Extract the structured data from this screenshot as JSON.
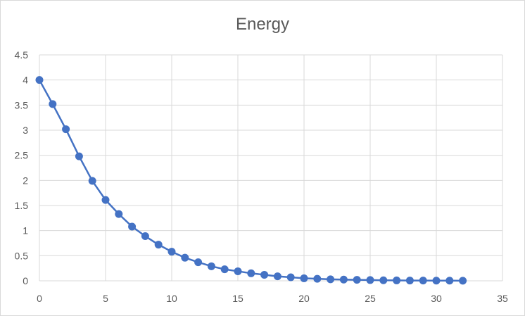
{
  "chart_data": {
    "type": "line",
    "title": "Energy",
    "xlabel": "",
    "ylabel": "",
    "xlim": [
      0,
      35
    ],
    "ylim": [
      0,
      4.5
    ],
    "x_ticks": [
      "0",
      "5",
      "10",
      "15",
      "20",
      "25",
      "30",
      "35"
    ],
    "y_ticks": [
      "0",
      "0.5",
      "1",
      "1.5",
      "2",
      "2.5",
      "3",
      "3.5",
      "4",
      "4.5"
    ],
    "grid": true,
    "legend": "none",
    "series": [
      {
        "color": "#4472c4",
        "marker": "circle",
        "x": [
          0,
          1,
          2,
          3,
          4,
          5,
          6,
          7,
          8,
          9,
          10,
          11,
          12,
          13,
          14,
          15,
          16,
          17,
          18,
          19,
          20,
          21,
          22,
          23,
          24,
          25,
          26,
          27,
          28,
          29,
          30,
          31,
          32
        ],
        "y": [
          4.0,
          3.52,
          3.02,
          2.48,
          1.99,
          1.61,
          1.33,
          1.08,
          0.89,
          0.72,
          0.58,
          0.46,
          0.37,
          0.29,
          0.23,
          0.19,
          0.15,
          0.12,
          0.09,
          0.07,
          0.05,
          0.04,
          0.03,
          0.025,
          0.02,
          0.015,
          0.01,
          0.008,
          0.006,
          0.005,
          0.004,
          0.003,
          0.002
        ]
      }
    ]
  }
}
